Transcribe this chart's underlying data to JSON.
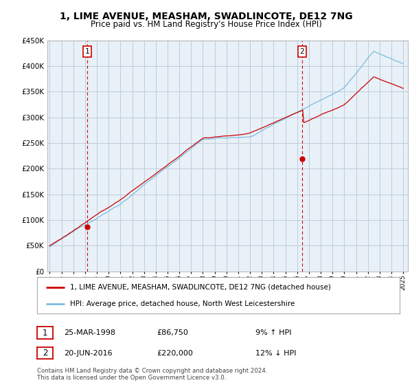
{
  "title_line1": "1, LIME AVENUE, MEASHAM, SWADLINCOTE, DE12 7NG",
  "title_line2": "Price paid vs. HM Land Registry's House Price Index (HPI)",
  "legend_line1": "1, LIME AVENUE, MEASHAM, SWADLINCOTE, DE12 7NG (detached house)",
  "legend_line2": "HPI: Average price, detached house, North West Leicestershire",
  "sale1_date": "25-MAR-1998",
  "sale1_price": "£86,750",
  "sale1_hpi": "9% ↑ HPI",
  "sale2_date": "20-JUN-2016",
  "sale2_price": "£220,000",
  "sale2_hpi": "12% ↓ HPI",
  "footer": "Contains HM Land Registry data © Crown copyright and database right 2024.\nThis data is licensed under the Open Government Licence v3.0.",
  "ymin": 0,
  "ymax": 450000,
  "yticks": [
    0,
    50000,
    100000,
    150000,
    200000,
    250000,
    300000,
    350000,
    400000,
    450000
  ],
  "hpi_color": "#7bbde0",
  "price_color": "#cc0000",
  "bg_chart": "#e8f0f8",
  "background_color": "#ffffff",
  "grid_color": "#c0ccd8"
}
